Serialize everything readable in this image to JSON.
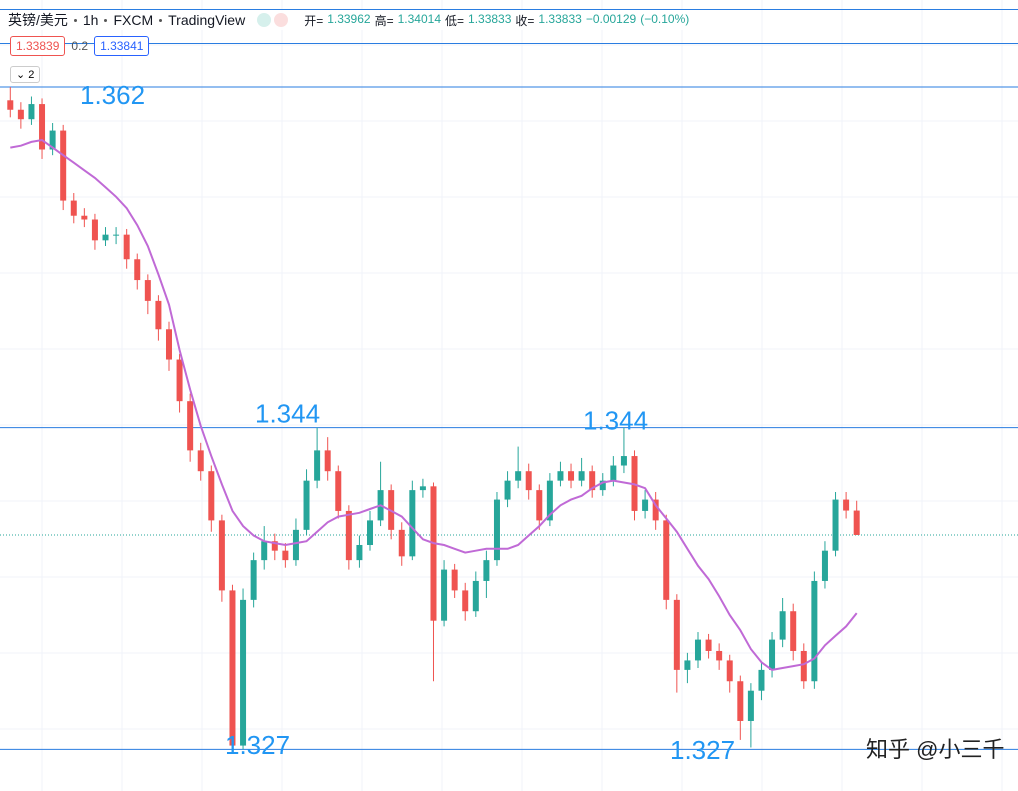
{
  "header": {
    "symbol": "英镑/美元",
    "interval": "1h",
    "broker": "FXCM",
    "platform": "TradingView",
    "open_label": "开=",
    "high_label": "高=",
    "low_label": "低=",
    "close_label": "收=",
    "change": "−0.00129",
    "change_pct": "(−0.10%)",
    "bid": 1.33839,
    "spread": 0.2,
    "ask": 1.33841,
    "collapsed_count": 2
  },
  "chart_data": {
    "type": "candlestick",
    "candles": [
      [
        1.3613,
        1.362,
        1.3604,
        1.3608
      ],
      [
        1.3608,
        1.3612,
        1.3598,
        1.3603
      ],
      [
        1.3603,
        1.3615,
        1.36,
        1.3611
      ],
      [
        1.3611,
        1.3614,
        1.3582,
        1.3587
      ],
      [
        1.3587,
        1.3601,
        1.3584,
        1.3597
      ],
      [
        1.3597,
        1.36,
        1.3555,
        1.356
      ],
      [
        1.356,
        1.3564,
        1.3548,
        1.3552
      ],
      [
        1.3552,
        1.3556,
        1.3546,
        1.355
      ],
      [
        1.355,
        1.3553,
        1.3534,
        1.3539
      ],
      [
        1.3539,
        1.3546,
        1.3536,
        1.3542
      ],
      [
        1.3542,
        1.3546,
        1.3537,
        1.3542
      ],
      [
        1.3542,
        1.3545,
        1.3524,
        1.3529
      ],
      [
        1.3529,
        1.3532,
        1.3513,
        1.3518
      ],
      [
        1.3518,
        1.3521,
        1.35,
        1.3507
      ],
      [
        1.3507,
        1.351,
        1.3486,
        1.3492
      ],
      [
        1.3492,
        1.3496,
        1.347,
        1.3476
      ],
      [
        1.3476,
        1.3479,
        1.3448,
        1.3454
      ],
      [
        1.3454,
        1.3458,
        1.3422,
        1.3428
      ],
      [
        1.3428,
        1.3432,
        1.3412,
        1.3417
      ],
      [
        1.3417,
        1.342,
        1.3385,
        1.3391
      ],
      [
        1.3391,
        1.3394,
        1.3348,
        1.3354
      ],
      [
        1.3354,
        1.3357,
        1.327,
        1.3272
      ],
      [
        1.3272,
        1.3355,
        1.327,
        1.3349
      ],
      [
        1.3349,
        1.3374,
        1.3345,
        1.337
      ],
      [
        1.337,
        1.3388,
        1.3365,
        1.338
      ],
      [
        1.338,
        1.3384,
        1.337,
        1.3375
      ],
      [
        1.3375,
        1.3379,
        1.3366,
        1.337
      ],
      [
        1.337,
        1.3392,
        1.3367,
        1.3386
      ],
      [
        1.3386,
        1.3418,
        1.3383,
        1.3412
      ],
      [
        1.3412,
        1.344,
        1.3408,
        1.3428
      ],
      [
        1.3428,
        1.3435,
        1.3412,
        1.3417
      ],
      [
        1.3417,
        1.342,
        1.3392,
        1.3396
      ],
      [
        1.3396,
        1.3399,
        1.3365,
        1.337
      ],
      [
        1.337,
        1.3383,
        1.3366,
        1.3378
      ],
      [
        1.3378,
        1.3396,
        1.3375,
        1.3391
      ],
      [
        1.3391,
        1.3422,
        1.3388,
        1.3407
      ],
      [
        1.3407,
        1.341,
        1.3381,
        1.3386
      ],
      [
        1.3386,
        1.339,
        1.3367,
        1.3372
      ],
      [
        1.3372,
        1.3412,
        1.337,
        1.3407
      ],
      [
        1.3407,
        1.3413,
        1.3403,
        1.3409
      ],
      [
        1.3409,
        1.3411,
        1.3306,
        1.3338
      ],
      [
        1.3338,
        1.337,
        1.3335,
        1.3365
      ],
      [
        1.3365,
        1.3368,
        1.335,
        1.3354
      ],
      [
        1.3354,
        1.3358,
        1.3338,
        1.3343
      ],
      [
        1.3343,
        1.3364,
        1.334,
        1.3359
      ],
      [
        1.3359,
        1.3375,
        1.335,
        1.337
      ],
      [
        1.337,
        1.3406,
        1.3367,
        1.3402
      ],
      [
        1.3402,
        1.3417,
        1.3398,
        1.3412
      ],
      [
        1.3412,
        1.343,
        1.3408,
        1.3417
      ],
      [
        1.3417,
        1.3421,
        1.3402,
        1.3407
      ],
      [
        1.3407,
        1.341,
        1.3386,
        1.3391
      ],
      [
        1.3391,
        1.3416,
        1.3388,
        1.3412
      ],
      [
        1.3412,
        1.3422,
        1.3409,
        1.3417
      ],
      [
        1.3417,
        1.3421,
        1.3408,
        1.3412
      ],
      [
        1.3412,
        1.3424,
        1.3409,
        1.3417
      ],
      [
        1.3417,
        1.342,
        1.3403,
        1.3407
      ],
      [
        1.3407,
        1.3416,
        1.3404,
        1.3412
      ],
      [
        1.3412,
        1.3425,
        1.3409,
        1.342
      ],
      [
        1.342,
        1.344,
        1.3416,
        1.3425
      ],
      [
        1.3425,
        1.3428,
        1.3391,
        1.3396
      ],
      [
        1.3396,
        1.3407,
        1.3392,
        1.3402
      ],
      [
        1.3402,
        1.3406,
        1.3386,
        1.3391
      ],
      [
        1.3391,
        1.3394,
        1.3344,
        1.3349
      ],
      [
        1.3349,
        1.3352,
        1.33,
        1.3312
      ],
      [
        1.3312,
        1.3321,
        1.3305,
        1.3317
      ],
      [
        1.3317,
        1.3332,
        1.3313,
        1.3328
      ],
      [
        1.3328,
        1.3331,
        1.3318,
        1.3322
      ],
      [
        1.3322,
        1.3326,
        1.3312,
        1.3317
      ],
      [
        1.3317,
        1.332,
        1.33,
        1.3306
      ],
      [
        1.3306,
        1.3309,
        1.3275,
        1.3285
      ],
      [
        1.3285,
        1.3305,
        1.3271,
        1.3301
      ],
      [
        1.3301,
        1.3316,
        1.3296,
        1.3312
      ],
      [
        1.3312,
        1.3332,
        1.3308,
        1.3328
      ],
      [
        1.3328,
        1.335,
        1.3324,
        1.3343
      ],
      [
        1.3343,
        1.3347,
        1.3317,
        1.3322
      ],
      [
        1.3322,
        1.3326,
        1.3302,
        1.3306
      ],
      [
        1.3306,
        1.3364,
        1.3302,
        1.3359
      ],
      [
        1.3359,
        1.338,
        1.3355,
        1.3375
      ],
      [
        1.3375,
        1.3406,
        1.3372,
        1.3402
      ],
      [
        1.3402,
        1.3406,
        1.3392,
        1.33962
      ],
      [
        1.33962,
        1.34014,
        1.33833,
        1.33833
      ]
    ],
    "ma": [
      1.3588,
      1.3589,
      1.3591,
      1.3592,
      1.3588,
      1.3584,
      1.358,
      1.3576,
      1.3572,
      1.3567,
      1.3562,
      1.3556,
      1.3547,
      1.3536,
      1.3521,
      1.3505,
      1.3481,
      1.346,
      1.3441,
      1.3425,
      1.341,
      1.3396,
      1.3388,
      1.3383,
      1.338,
      1.3379,
      1.3378,
      1.3379,
      1.338,
      1.3385,
      1.339,
      1.3393,
      1.3394,
      1.3395,
      1.3397,
      1.3399,
      1.3396,
      1.3393,
      1.3387,
      1.3381,
      1.3379,
      1.3378,
      1.3376,
      1.3374,
      1.3375,
      1.3376,
      1.3376,
      1.3376,
      1.3378,
      1.3383,
      1.3388,
      1.3394,
      1.3399,
      1.3402,
      1.3404,
      1.3408,
      1.3411,
      1.3412,
      1.3411,
      1.341,
      1.3408,
      1.3399,
      1.3392,
      1.3385,
      1.3376,
      1.3367,
      1.336,
      1.3351,
      1.3341,
      1.3333,
      1.3323,
      1.3316,
      1.3312,
      1.3313,
      1.3314,
      1.3315,
      1.3318,
      1.3325,
      1.333,
      1.3335,
      1.3342
    ],
    "up_color": "#26a69a",
    "down_color": "#ef5350",
    "ma_color": "#c06ad6",
    "levels": [
      1.3661,
      1.3643,
      1.362,
      1.344,
      1.327
    ],
    "level_color": "#2a7de1",
    "level_labels": [
      1.362,
      1.344,
      1.344,
      1.327,
      1.327
    ],
    "label_color": "#2196f3",
    "last_price": 1.33833,
    "ylim": [
      1.3248,
      1.3666
    ],
    "grid": true
  },
  "watermark": "知乎 @小三千"
}
